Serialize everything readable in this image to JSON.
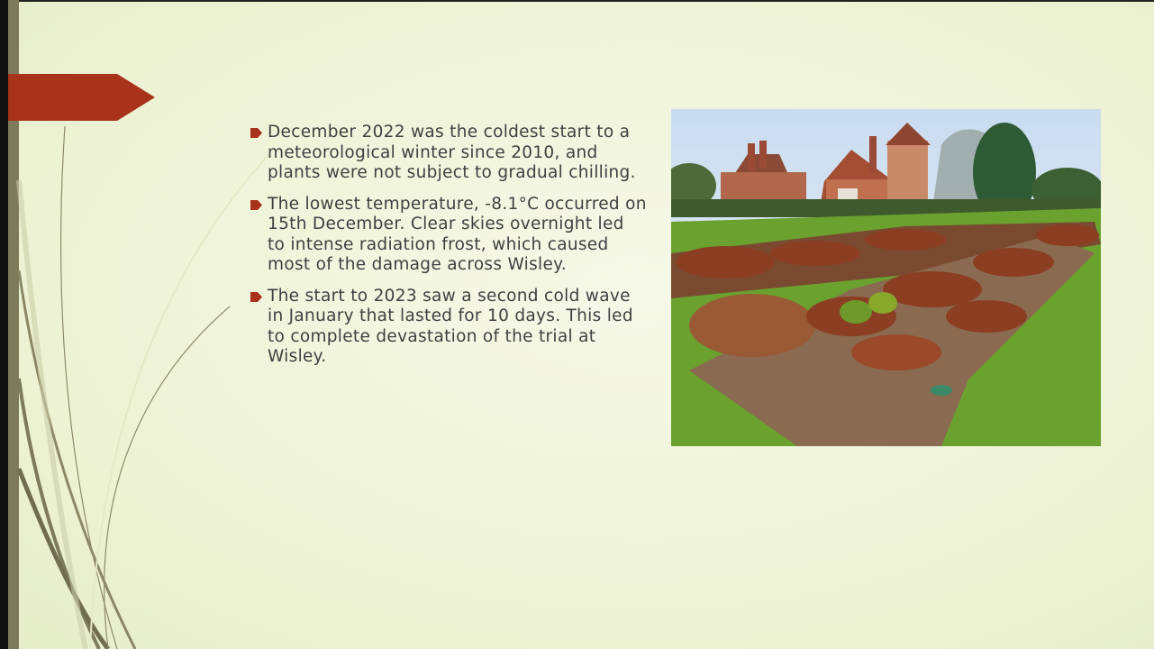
{
  "bullets": [
    "December 2022 was the coldest start to a meteorological winter since 2010, and plants were not subject to gradual chilling.",
    "The lowest temperature, -8.1°C occurred on 15th December. Clear skies overnight led to intense radiation frost, which caused most of the damage across Wisley.",
    "The start to 2023 saw a second cold wave in January that lasted for 10 days. This led to complete devastation of the trial at Wisley."
  ]
}
